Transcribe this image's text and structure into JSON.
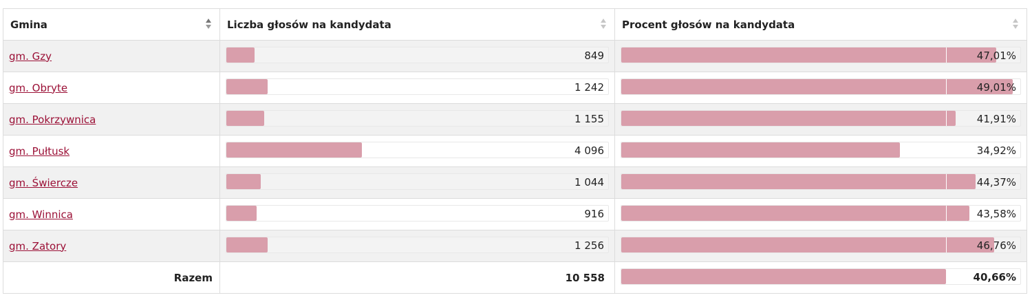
{
  "table": {
    "headers": {
      "gmina": "Gmina",
      "votes": "Liczba głosów na kandydata",
      "percent": "Procent głosów na kandydata"
    },
    "max_votes": 11555,
    "reference_percent": 40.66,
    "rows": [
      {
        "name": "gm. Gzy",
        "votes": 849,
        "votes_label": "849",
        "percent": 47.01,
        "percent_label": "47,01%"
      },
      {
        "name": "gm. Obryte",
        "votes": 1242,
        "votes_label": "1 242",
        "percent": 49.01,
        "percent_label": "49,01%"
      },
      {
        "name": "gm. Pokrzywnica",
        "votes": 1155,
        "votes_label": "1 155",
        "percent": 41.91,
        "percent_label": "41,91%"
      },
      {
        "name": "gm. Pułtusk",
        "votes": 4096,
        "votes_label": "4 096",
        "percent": 34.92,
        "percent_label": "34,92%"
      },
      {
        "name": "gm. Świercze",
        "votes": 1044,
        "votes_label": "1 044",
        "percent": 44.37,
        "percent_label": "44,37%"
      },
      {
        "name": "gm. Winnica",
        "votes": 916,
        "votes_label": "916",
        "percent": 43.58,
        "percent_label": "43,58%"
      },
      {
        "name": "gm. Zatory",
        "votes": 1256,
        "votes_label": "1 256",
        "percent": 46.76,
        "percent_label": "46,76%"
      }
    ],
    "total": {
      "label": "Razem",
      "votes_label": "10 558",
      "percent": 40.66,
      "percent_label": "40,66%"
    }
  },
  "colors": {
    "bar": "#d99eab",
    "link": "#9b1036"
  }
}
